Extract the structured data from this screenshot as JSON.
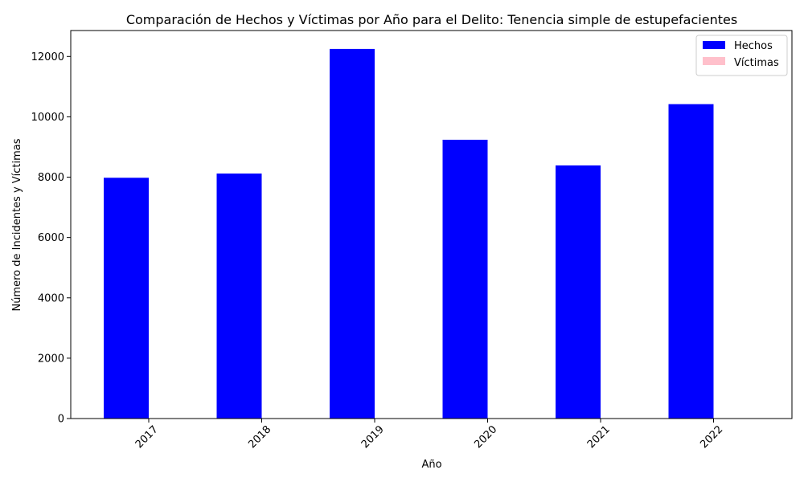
{
  "chart_data": {
    "type": "bar",
    "title": "Comparación de Hechos y Víctimas por Año para el Delito: Tenencia simple de estupefacientes",
    "xlabel": "Año",
    "ylabel": "Número de Incidentes y Víctimas",
    "categories": [
      "2017",
      "2018",
      "2019",
      "2020",
      "2021",
      "2022"
    ],
    "series": [
      {
        "name": "Hechos",
        "color": "#0000ff",
        "values": [
          7980,
          8120,
          12250,
          9240,
          8390,
          10420
        ]
      },
      {
        "name": "Víctimas",
        "color": "#ffc0cb",
        "values": [
          0,
          0,
          0,
          0,
          0,
          0
        ]
      }
    ],
    "ylim": [
      0,
      12860
    ],
    "yticks": [
      0,
      2000,
      4000,
      6000,
      8000,
      10000,
      12000
    ],
    "grid": false,
    "legend_position": "top-right",
    "xtick_rotation": 45
  }
}
